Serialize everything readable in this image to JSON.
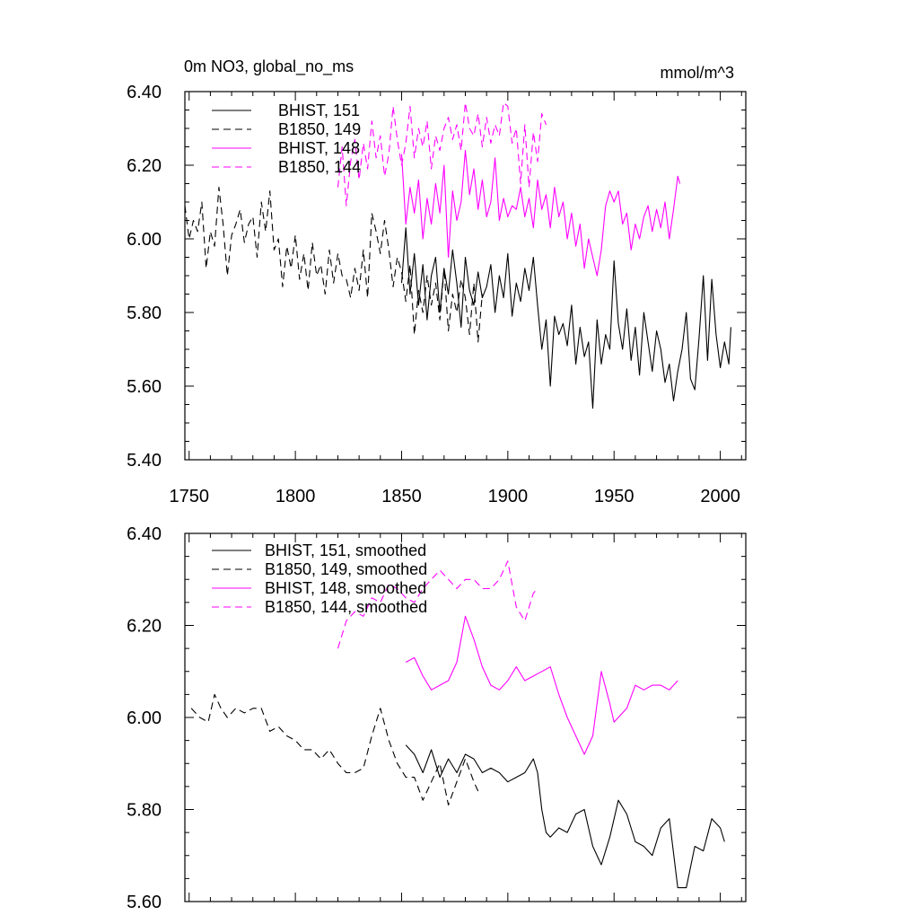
{
  "chart_data": [
    {
      "type": "line",
      "title": "0m NO3, global_no_ms",
      "units": "mmol/m^3",
      "xlim": [
        1748,
        2012
      ],
      "ylim": [
        5.4,
        6.4
      ],
      "x_ticks": [
        1750,
        1800,
        1850,
        1900,
        1950,
        2000
      ],
      "x_tick_labels": [
        "1750",
        "1800",
        "1850",
        "1900",
        "1950",
        "2000"
      ],
      "y_ticks": [
        5.4,
        5.6,
        5.8,
        6.0,
        6.2,
        6.4
      ],
      "y_tick_labels": [
        "5.40",
        "5.60",
        "5.80",
        "6.00",
        "6.20",
        "6.40"
      ],
      "legend_position": "top-left",
      "series": [
        {
          "name": "BHIST, 151",
          "color": "#000000",
          "dash": "solid",
          "x": [
            1850,
            1852,
            1854,
            1856,
            1858,
            1860,
            1862,
            1864,
            1866,
            1868,
            1870,
            1872,
            1874,
            1876,
            1878,
            1880,
            1882,
            1884,
            1886,
            1888,
            1890,
            1892,
            1894,
            1896,
            1898,
            1900,
            1902,
            1904,
            1906,
            1908,
            1910,
            1912,
            1914,
            1916,
            1918,
            1920,
            1922,
            1924,
            1926,
            1928,
            1930,
            1932,
            1934,
            1936,
            1938,
            1940,
            1942,
            1944,
            1946,
            1948,
            1950,
            1952,
            1954,
            1956,
            1958,
            1960,
            1962,
            1964,
            1966,
            1968,
            1970,
            1972,
            1974,
            1976,
            1978,
            1980,
            1982,
            1984,
            1986,
            1988,
            1990,
            1992,
            1994,
            1996,
            1998,
            2000,
            2002,
            2004,
            2005
          ],
          "y": [
            5.88,
            6.03,
            5.85,
            5.96,
            5.82,
            5.93,
            5.78,
            5.9,
            5.95,
            5.8,
            5.92,
            5.85,
            5.97,
            5.88,
            5.76,
            5.95,
            5.86,
            5.82,
            5.91,
            5.84,
            5.87,
            5.93,
            5.8,
            5.9,
            5.84,
            5.96,
            5.79,
            5.88,
            5.83,
            5.92,
            5.86,
            5.95,
            5.82,
            5.7,
            5.78,
            5.6,
            5.79,
            5.74,
            5.77,
            5.71,
            5.82,
            5.66,
            5.76,
            5.68,
            5.72,
            5.54,
            5.78,
            5.66,
            5.74,
            5.7,
            5.94,
            5.77,
            5.7,
            5.81,
            5.67,
            5.76,
            5.63,
            5.8,
            5.72,
            5.64,
            5.75,
            5.7,
            5.61,
            5.66,
            5.56,
            5.64,
            5.7,
            5.8,
            5.62,
            5.59,
            5.73,
            5.9,
            5.67,
            5.89,
            5.74,
            5.65,
            5.72,
            5.66,
            5.76
          ]
        },
        {
          "name": "B1850, 149",
          "color": "#000000",
          "dash": "8,5",
          "x": [
            1748,
            1750,
            1752,
            1754,
            1756,
            1758,
            1760,
            1762,
            1764,
            1766,
            1768,
            1770,
            1772,
            1774,
            1776,
            1778,
            1780,
            1782,
            1784,
            1786,
            1788,
            1790,
            1792,
            1794,
            1796,
            1798,
            1800,
            1802,
            1804,
            1806,
            1808,
            1810,
            1812,
            1814,
            1816,
            1818,
            1820,
            1822,
            1824,
            1826,
            1828,
            1830,
            1832,
            1834,
            1836,
            1838,
            1840,
            1842,
            1844,
            1846,
            1848,
            1850,
            1852,
            1854,
            1856,
            1858,
            1860,
            1862,
            1864,
            1866,
            1868,
            1870,
            1872,
            1874,
            1876,
            1878,
            1880,
            1882,
            1884,
            1886,
            1888
          ],
          "y": [
            6.09,
            6.0,
            6.05,
            6.02,
            6.1,
            5.92,
            6.02,
            5.98,
            6.14,
            6.04,
            5.9,
            6.01,
            6.04,
            6.08,
            5.99,
            6.04,
            6.06,
            5.95,
            6.1,
            6.02,
            6.13,
            5.97,
            6.0,
            5.87,
            5.98,
            5.92,
            6.01,
            5.89,
            5.96,
            5.86,
            5.99,
            5.9,
            5.93,
            5.85,
            5.97,
            5.88,
            5.96,
            5.9,
            5.89,
            5.84,
            5.92,
            5.86,
            5.97,
            5.84,
            6.07,
            6.02,
            5.96,
            6.05,
            5.97,
            5.87,
            5.95,
            5.91,
            5.83,
            5.93,
            5.74,
            5.86,
            5.8,
            5.9,
            5.82,
            5.88,
            5.78,
            5.92,
            5.75,
            5.85,
            5.8,
            5.89,
            5.84,
            5.74,
            5.88,
            5.72,
            5.85
          ]
        },
        {
          "name": "BHIST, 148",
          "color": "#ff00ff",
          "dash": "solid",
          "x": [
            1850,
            1852,
            1854,
            1856,
            1858,
            1860,
            1862,
            1864,
            1866,
            1868,
            1870,
            1872,
            1874,
            1876,
            1878,
            1880,
            1882,
            1884,
            1886,
            1888,
            1890,
            1892,
            1894,
            1896,
            1898,
            1900,
            1902,
            1904,
            1906,
            1908,
            1910,
            1912,
            1914,
            1916,
            1918,
            1920,
            1922,
            1924,
            1926,
            1928,
            1930,
            1932,
            1934,
            1936,
            1938,
            1940,
            1942,
            1944,
            1946,
            1948,
            1950,
            1952,
            1954,
            1956,
            1958,
            1960,
            1962,
            1964,
            1966,
            1968,
            1970,
            1972,
            1974,
            1976,
            1978,
            1980,
            1981
          ],
          "y": [
            6.23,
            6.04,
            6.14,
            6.07,
            6.16,
            6.0,
            6.11,
            6.04,
            6.15,
            6.07,
            6.2,
            5.95,
            6.13,
            6.05,
            6.1,
            6.24,
            6.12,
            6.19,
            6.08,
            6.16,
            6.06,
            6.1,
            6.22,
            6.05,
            6.11,
            6.06,
            6.09,
            6.08,
            6.14,
            6.06,
            6.11,
            6.03,
            6.16,
            6.08,
            6.12,
            6.03,
            6.14,
            6.06,
            6.1,
            6.0,
            6.07,
            5.98,
            6.04,
            5.92,
            6.0,
            5.95,
            5.9,
            5.97,
            6.09,
            6.13,
            6.1,
            6.13,
            6.04,
            6.07,
            5.97,
            6.04,
            6.0,
            6.06,
            6.09,
            6.02,
            6.08,
            6.03,
            6.1,
            6.0,
            6.08,
            6.17,
            6.15
          ]
        },
        {
          "name": "B1850, 144",
          "color": "#ff00ff",
          "dash": "8,5",
          "x": [
            1820,
            1822,
            1824,
            1826,
            1828,
            1830,
            1832,
            1834,
            1836,
            1838,
            1840,
            1842,
            1844,
            1846,
            1848,
            1850,
            1852,
            1854,
            1856,
            1858,
            1860,
            1862,
            1864,
            1866,
            1868,
            1870,
            1872,
            1874,
            1876,
            1878,
            1880,
            1882,
            1884,
            1886,
            1888,
            1890,
            1892,
            1894,
            1896,
            1898,
            1900,
            1902,
            1904,
            1906,
            1908,
            1910,
            1912,
            1914,
            1916,
            1918
          ],
          "y": [
            6.14,
            6.25,
            6.09,
            6.21,
            6.27,
            6.16,
            6.26,
            6.19,
            6.32,
            6.22,
            6.28,
            6.17,
            6.23,
            6.36,
            6.27,
            6.2,
            6.26,
            6.36,
            6.22,
            6.3,
            6.25,
            6.32,
            6.19,
            6.28,
            6.24,
            6.3,
            6.33,
            6.27,
            6.31,
            6.24,
            6.37,
            6.3,
            6.28,
            6.34,
            6.25,
            6.33,
            6.26,
            6.31,
            6.28,
            6.37,
            6.36,
            6.26,
            6.3,
            6.15,
            6.31,
            6.14,
            6.29,
            6.21,
            6.34,
            6.31
          ]
        }
      ]
    },
    {
      "type": "line",
      "xlim": [
        1748,
        2012
      ],
      "ylim": [
        5.6,
        6.4
      ],
      "x_ticks": [
        1750,
        1800,
        1850,
        1900,
        1950,
        2000
      ],
      "y_ticks": [
        5.6,
        5.8,
        6.0,
        6.2,
        6.4
      ],
      "y_tick_labels": [
        "5.60",
        "5.80",
        "6.00",
        "6.20",
        "6.40"
      ],
      "legend_position": "top-left",
      "series": [
        {
          "name": "BHIST, 151, smoothed",
          "color": "#000000",
          "dash": "solid",
          "x": [
            1852,
            1856,
            1860,
            1864,
            1868,
            1872,
            1876,
            1880,
            1884,
            1888,
            1892,
            1896,
            1900,
            1904,
            1908,
            1912,
            1914,
            1916,
            1918,
            1920,
            1924,
            1928,
            1932,
            1936,
            1940,
            1944,
            1948,
            1952,
            1956,
            1960,
            1964,
            1968,
            1972,
            1976,
            1980,
            1984,
            1988,
            1992,
            1996,
            2000,
            2002
          ],
          "y": [
            5.94,
            5.92,
            5.88,
            5.93,
            5.87,
            5.91,
            5.88,
            5.92,
            5.91,
            5.88,
            5.89,
            5.88,
            5.86,
            5.87,
            5.88,
            5.91,
            5.88,
            5.8,
            5.75,
            5.74,
            5.76,
            5.75,
            5.79,
            5.8,
            5.72,
            5.68,
            5.74,
            5.82,
            5.79,
            5.73,
            5.72,
            5.7,
            5.76,
            5.78,
            5.63,
            5.63,
            5.72,
            5.71,
            5.78,
            5.76,
            5.73
          ]
        },
        {
          "name": "B1850, 149, smoothed",
          "color": "#000000",
          "dash": "8,5",
          "x": [
            1751,
            1755,
            1759,
            1762,
            1765,
            1768,
            1772,
            1776,
            1780,
            1784,
            1788,
            1792,
            1796,
            1800,
            1804,
            1808,
            1812,
            1816,
            1820,
            1824,
            1828,
            1832,
            1836,
            1840,
            1844,
            1848,
            1852,
            1856,
            1860,
            1864,
            1868,
            1872,
            1876,
            1880,
            1884,
            1886
          ],
          "y": [
            6.02,
            6.0,
            5.99,
            6.05,
            6.02,
            6.0,
            6.02,
            6.01,
            6.02,
            6.02,
            5.97,
            5.98,
            5.96,
            5.95,
            5.93,
            5.93,
            5.91,
            5.93,
            5.9,
            5.88,
            5.88,
            5.89,
            5.96,
            6.02,
            5.95,
            5.9,
            5.87,
            5.87,
            5.82,
            5.86,
            5.9,
            5.81,
            5.86,
            5.91,
            5.86,
            5.84
          ]
        },
        {
          "name": "BHIST, 148, smoothed",
          "color": "#ff00ff",
          "dash": "solid",
          "x": [
            1852,
            1856,
            1860,
            1864,
            1868,
            1872,
            1876,
            1880,
            1884,
            1888,
            1892,
            1896,
            1900,
            1904,
            1908,
            1912,
            1916,
            1920,
            1924,
            1928,
            1932,
            1936,
            1940,
            1944,
            1948,
            1950,
            1952,
            1956,
            1960,
            1964,
            1968,
            1972,
            1976,
            1980
          ],
          "y": [
            6.12,
            6.13,
            6.09,
            6.06,
            6.07,
            6.08,
            6.12,
            6.22,
            6.17,
            6.11,
            6.07,
            6.06,
            6.08,
            6.11,
            6.08,
            6.09,
            6.1,
            6.11,
            6.05,
            6.0,
            5.96,
            5.92,
            5.96,
            6.1,
            6.03,
            5.99,
            6.0,
            6.02,
            6.07,
            6.06,
            6.07,
            6.07,
            6.06,
            6.08
          ]
        },
        {
          "name": "B1850, 144, smoothed",
          "color": "#ff00ff",
          "dash": "8,5",
          "x": [
            1820,
            1824,
            1828,
            1832,
            1836,
            1840,
            1844,
            1848,
            1852,
            1856,
            1860,
            1864,
            1868,
            1872,
            1876,
            1880,
            1884,
            1888,
            1892,
            1896,
            1900,
            1904,
            1908,
            1912,
            1914
          ],
          "y": [
            6.15,
            6.21,
            6.23,
            6.22,
            6.26,
            6.25,
            6.29,
            6.28,
            6.26,
            6.25,
            6.28,
            6.3,
            6.32,
            6.3,
            6.28,
            6.3,
            6.3,
            6.28,
            6.28,
            6.3,
            6.34,
            6.24,
            6.21,
            6.27,
            6.28
          ]
        }
      ]
    }
  ]
}
